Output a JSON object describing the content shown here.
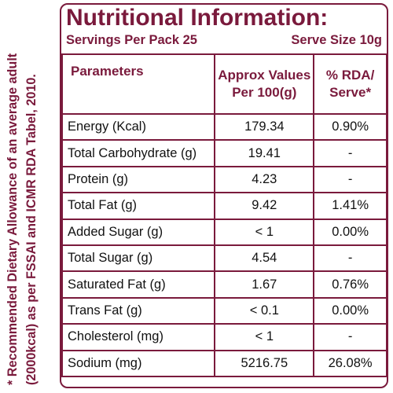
{
  "footnote": {
    "line1": "* Recommended Dietary Allowance of an average adult",
    "line2": "(2000kcal) as per FSSAI and ICMR RDA Tabel, 2010."
  },
  "label": {
    "title": "Nutritional Information:",
    "servings": "Servings Per Pack 25",
    "serve_size": "Serve Size 10g"
  },
  "table": {
    "headers": {
      "parameters": "Parameters",
      "approx_line1": "Approx Values",
      "approx_line2": "Per 100(g)",
      "rda_line1": "% RDA/",
      "rda_line2": "Serve*"
    },
    "rows": [
      {
        "name": "Energy (Kcal)",
        "value": "179.34",
        "rda": "0.90%"
      },
      {
        "name": "Total Carbohydrate (g)",
        "value": "19.41",
        "rda": "-"
      },
      {
        "name": "Protein (g)",
        "value": "4.23",
        "rda": "-"
      },
      {
        "name": "Total Fat (g)",
        "value": "9.42",
        "rda": "1.41%"
      },
      {
        "name": "Added Sugar (g)",
        "value": "< 1",
        "rda": "0.00%"
      },
      {
        "name": "Total Sugar (g)",
        "value": "4.54",
        "rda": "-"
      },
      {
        "name": "Saturated Fat (g)",
        "value": "1.67",
        "rda": "0.76%"
      },
      {
        "name": "Trans Fat (g)",
        "value": "< 0.1",
        "rda": "0.00%"
      },
      {
        "name": "Cholesterol (mg)",
        "value": "< 1",
        "rda": "-"
      },
      {
        "name": "Sodium (mg)",
        "value": "5216.75",
        "rda": "26.08%"
      }
    ]
  },
  "colors": {
    "brand": "#7a1a3c"
  }
}
